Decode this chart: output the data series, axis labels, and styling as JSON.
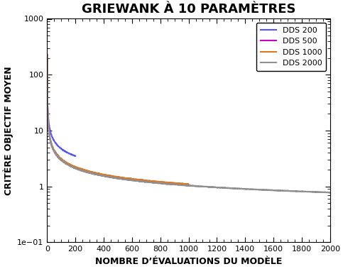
{
  "title": "GRIEWANK À 10 PARAMÈTRES",
  "xlabel": "NOMBRE D’ÉVALUATIONS DU MODÈLE",
  "ylabel": "CRITÈRE OBJECTIF MOYEN",
  "xlim": [
    0,
    2000
  ],
  "ylim": [
    0.1,
    1000
  ],
  "series": [
    {
      "label": "DDS 200",
      "color": "#5555FF",
      "n_evals": 200,
      "y_start": 200,
      "y_end": 3.5,
      "seed": 1
    },
    {
      "label": "DDS 500",
      "color": "#CC00CC",
      "n_evals": 500,
      "y_start": 200,
      "y_end": 1.4,
      "seed": 2
    },
    {
      "label": "DDS 1000",
      "color": "#E07820",
      "n_evals": 1000,
      "y_start": 200,
      "y_end": 1.1,
      "seed": 3
    },
    {
      "label": "DDS 2000",
      "color": "#909090",
      "n_evals": 2000,
      "y_start": 200,
      "y_end": 0.78,
      "seed": 4
    }
  ],
  "legend_loc": "upper right",
  "title_fontsize": 13,
  "label_fontsize": 9,
  "tick_fontsize": 8,
  "legend_fontsize": 8,
  "background_color": "#ffffff",
  "line_width": 1.5
}
